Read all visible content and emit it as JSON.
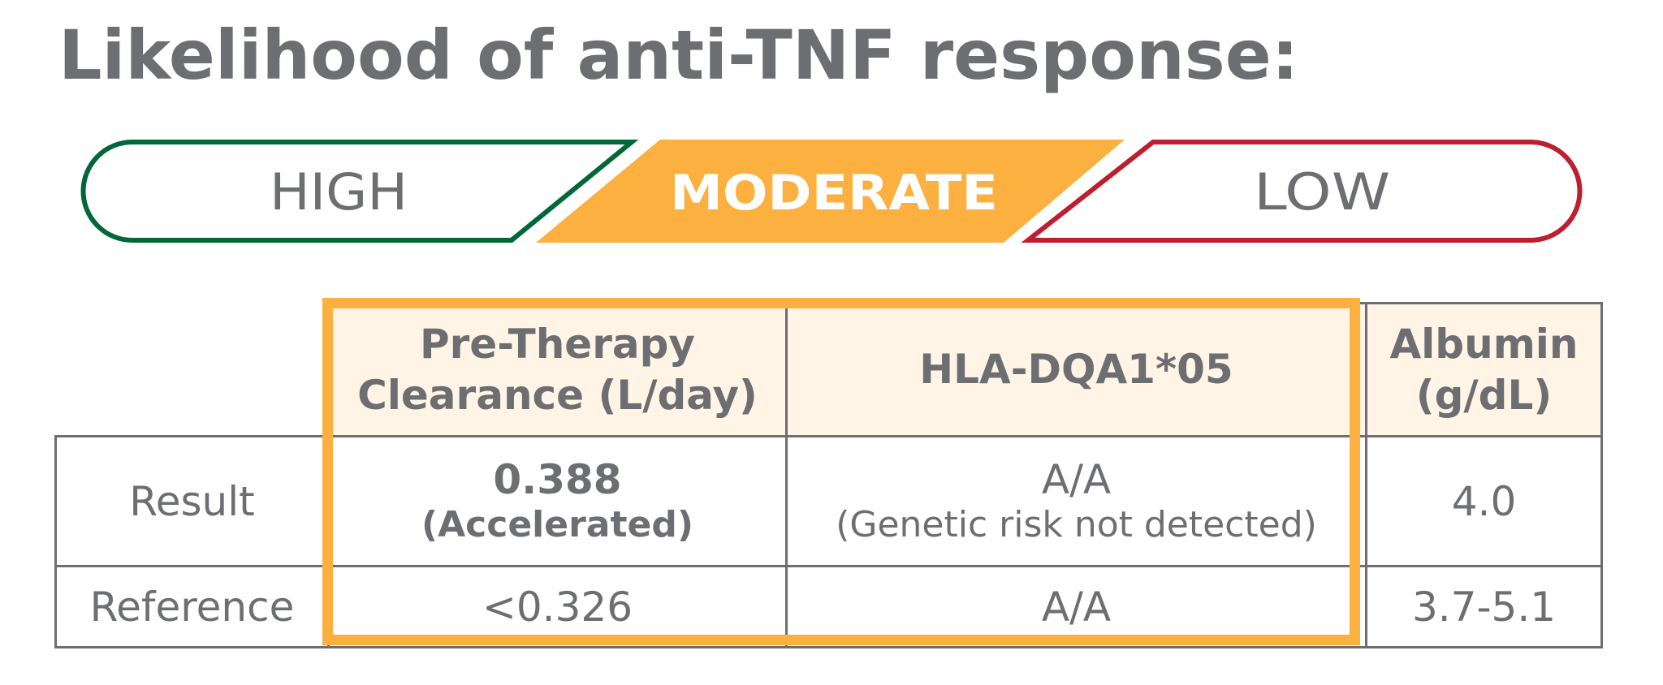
{
  "title": "Likelihood of anti-TNF response:",
  "scale": {
    "levels": [
      {
        "label": "HIGH",
        "color": "#006838",
        "selected": false
      },
      {
        "label": "MODERATE",
        "color": "#fbb040",
        "selected": true
      },
      {
        "label": "LOW",
        "color": "#be1e2d",
        "selected": false
      }
    ]
  },
  "table": {
    "headers": {
      "clearance": "Pre-Therapy Clearance (L/day)",
      "clearance_line1": "Pre-Therapy",
      "clearance_line2": "Clearance (L/day)",
      "hla": "HLA-DQA1*05",
      "albumin": "Albumin (g/dL)",
      "albumin_line1": "Albumin",
      "albumin_line2": "(g/dL)"
    },
    "result": {
      "label": "Result",
      "clearance_value": "0.388",
      "clearance_note": "(Accelerated)",
      "hla_value": "A/A",
      "hla_note": "(Genetic risk not detected)",
      "albumin_value": "4.0"
    },
    "reference": {
      "label": "Reference",
      "clearance_value": "<0.326",
      "hla_value": "A/A",
      "albumin_value": "3.7-5.1"
    },
    "highlight_color": "#fbb040",
    "header_fill": "#fff4e6"
  }
}
